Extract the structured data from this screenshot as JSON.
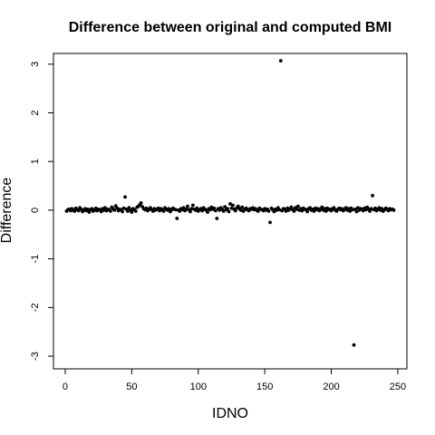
{
  "chart_data": {
    "type": "scatter",
    "title": "Difference between original and computed BMI",
    "x_label": "IDNO",
    "y_label": "Difference",
    "color": "#000000",
    "xlim": [
      -8.84,
      256.84
    ],
    "ylim": [
      -3.26,
      3.22
    ],
    "xticks": [
      0,
      50,
      100,
      150,
      200,
      250
    ],
    "yticks": [
      -3,
      -2,
      -1,
      0,
      1,
      2,
      3
    ],
    "x": [
      1,
      2,
      3,
      4,
      5,
      6,
      7,
      8,
      9,
      10,
      11,
      12,
      13,
      14,
      15,
      16,
      17,
      18,
      19,
      20,
      21,
      22,
      23,
      24,
      25,
      26,
      27,
      28,
      29,
      30,
      31,
      32,
      33,
      34,
      35,
      36,
      37,
      38,
      39,
      40,
      41,
      42,
      43,
      44,
      45,
      46,
      47,
      48,
      49,
      50,
      51,
      52,
      53,
      54,
      55,
      56,
      57,
      58,
      59,
      60,
      61,
      62,
      63,
      64,
      65,
      66,
      67,
      68,
      69,
      70,
      71,
      72,
      73,
      74,
      75,
      76,
      77,
      78,
      79,
      80,
      81,
      82,
      83,
      84,
      85,
      86,
      87,
      88,
      89,
      90,
      91,
      92,
      93,
      94,
      95,
      96,
      97,
      98,
      99,
      100,
      101,
      102,
      103,
      104,
      105,
      106,
      107,
      108,
      109,
      110,
      111,
      112,
      113,
      114,
      115,
      116,
      117,
      118,
      119,
      120,
      121,
      122,
      123,
      124,
      125,
      126,
      127,
      128,
      129,
      130,
      131,
      132,
      133,
      134,
      135,
      136,
      137,
      138,
      139,
      140,
      141,
      142,
      143,
      144,
      145,
      146,
      147,
      148,
      149,
      150,
      151,
      152,
      153,
      154,
      155,
      156,
      157,
      158,
      159,
      160,
      161,
      162,
      163,
      164,
      165,
      166,
      167,
      168,
      169,
      170,
      171,
      172,
      173,
      174,
      175,
      176,
      177,
      178,
      179,
      180,
      181,
      182,
      183,
      184,
      185,
      186,
      187,
      188,
      189,
      190,
      191,
      192,
      193,
      194,
      195,
      196,
      197,
      198,
      199,
      200,
      201,
      202,
      203,
      204,
      205,
      206,
      207,
      208,
      209,
      210,
      211,
      212,
      213,
      214,
      215,
      216,
      217,
      218,
      219,
      220,
      221,
      222,
      223,
      224,
      225,
      226,
      227,
      228,
      229,
      230,
      231,
      232,
      233,
      234,
      235,
      236,
      237,
      238,
      239,
      240,
      241,
      242,
      243,
      244,
      245,
      246,
      247
    ],
    "values": [
      -0.02,
      0.01,
      0.02,
      -0.01,
      0.03,
      0,
      -0.02,
      0.04,
      0.01,
      -0.01,
      0.05,
      0.02,
      -0.03,
      0,
      0.03,
      -0.01,
      0.02,
      -0.04,
      0.01,
      0.03,
      -0.02,
      0,
      0.04,
      -0.01,
      0.02,
      0.01,
      -0.03,
      0.03,
      0,
      0.05,
      -0.01,
      0.02,
      0.01,
      -0.02,
      0.06,
      0.03,
      0,
      0.09,
      0.04,
      -0.01,
      0.02,
      0.01,
      -0.03,
      0.04,
      0.27,
      0.02,
      -0.02,
      0.05,
      0,
      -0.04,
      0.03,
      0.01,
      -0.02,
      0.06,
      0.08,
      0.11,
      0.15,
      0.07,
      0.03,
      0.01,
      0.04,
      -0.01,
      0.02,
      0.05,
      0.01,
      -0.02,
      0.03,
      0,
      0.02,
      0.04,
      -0.01,
      0.03,
      0.01,
      -0.02,
      0.05,
      0.02,
      0,
      0.03,
      -0.03,
      0.01,
      0.04,
      0.02,
      0.01,
      -0.17,
      0,
      -0.02,
      0.03,
      0.01,
      0.05,
      -0.01,
      0.02,
      0.08,
      0.01,
      -0.03,
      0.03,
      0.1,
      0.02,
      0,
      0.04,
      -0.02,
      0.01,
      0.03,
      -0.01,
      0.05,
      0.02,
      0,
      -0.04,
      0.03,
      0.01,
      0.06,
      0.02,
      0.04,
      -0.01,
      -0.17,
      0.03,
      0,
      0.05,
      0.02,
      -0.02,
      0.07,
      0.01,
      0.03,
      -0.03,
      0.13,
      0.04,
      0.1,
      0.02,
      -0.01,
      0.05,
      0.08,
      0.03,
      0,
      0.06,
      -0.02,
      0.02,
      0.04,
      0.01,
      -0.01,
      0.03,
      0.02,
      0.05,
      0.01,
      0.03,
      0,
      -0.02,
      0.04,
      0.02,
      0.01,
      -0.01,
      0.03,
      0,
      0.02,
      -0.02,
      -0.25,
      0.04,
      0.01,
      -0.03,
      0.02,
      0,
      0.05,
      0.01,
      3.07,
      -0.01,
      0.03,
      0.02,
      -0.02,
      0.04,
      0,
      0.03,
      0.06,
      0.01,
      -0.02,
      0.05,
      0.02,
      0.08,
      0,
      0.03,
      -0.01,
      0.04,
      0.02,
      0.01,
      -0.03,
      0.03,
      0.05,
      0,
      0.02,
      -0.02,
      0.04,
      0.01,
      0.03,
      -0.01,
      0.02,
      0.06,
      0,
      0.03,
      -0.02,
      0.04,
      0.01,
      0.02,
      -0.01,
      0.03,
      0.05,
      0,
      -0.02,
      0.02,
      0.04,
      0.01,
      0.03,
      -0.01,
      0.02,
      0.05,
      0,
      0.03,
      -0.02,
      0.04,
      0.01,
      -2.77,
      0.02,
      -0.03,
      0.05,
      0,
      0.03,
      0.02,
      -0.01,
      0.04,
      0.01,
      0.06,
      0.02,
      -0.02,
      0.03,
      0.3,
      0.01,
      0.04,
      -0.01,
      0.02,
      0.05,
      0,
      0.03,
      -0.02,
      0.01,
      0.04,
      0.02,
      -0.01,
      0.03,
      0.01,
      0.02,
      0
    ]
  }
}
